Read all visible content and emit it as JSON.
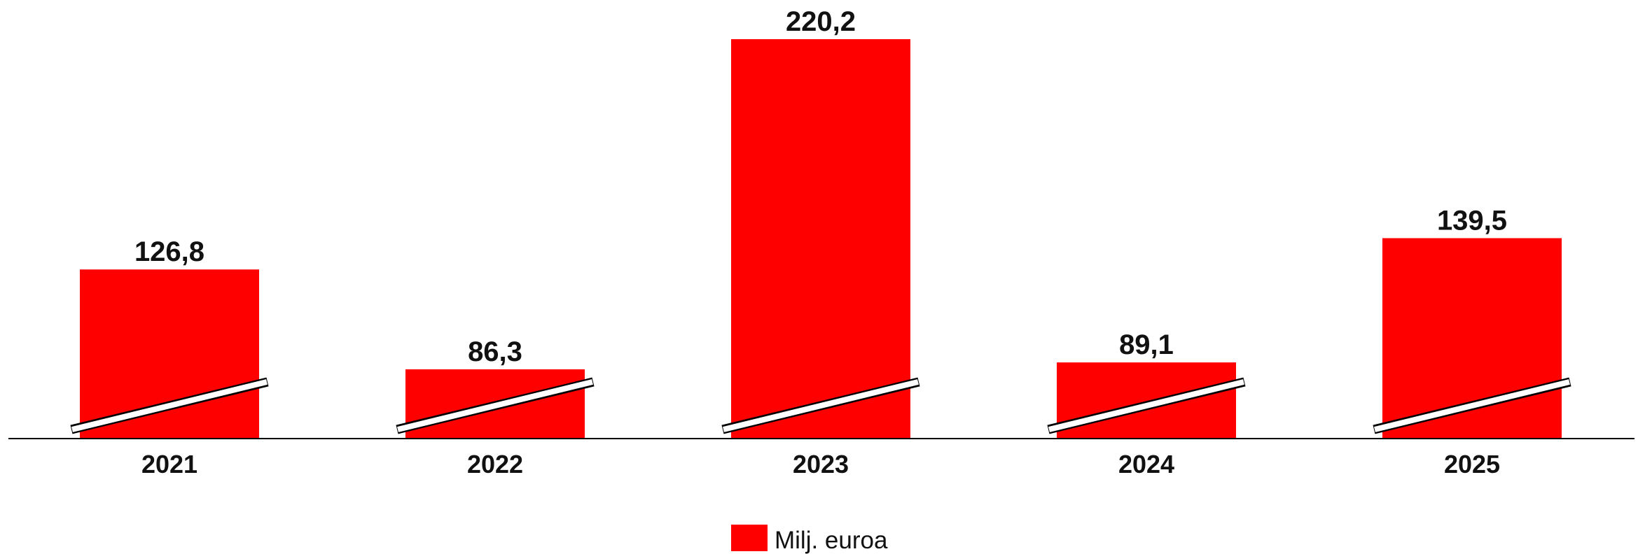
{
  "chart_data": {
    "type": "bar",
    "categories": [
      "2021",
      "2022",
      "2023",
      "2024",
      "2025"
    ],
    "series": [
      {
        "name": "Milj. euroa",
        "values": [
          126.8,
          86.3,
          220.2,
          89.1,
          139.5
        ]
      }
    ],
    "value_labels": [
      "126,8",
      "86,3",
      "220,2",
      "89,1",
      "139,5"
    ],
    "axis_break": true,
    "legend": {
      "position": "bottom-center"
    },
    "grid": false
  },
  "colors": {
    "bar": "#ff0000",
    "axis": "#000000",
    "break": "#ffffff"
  }
}
